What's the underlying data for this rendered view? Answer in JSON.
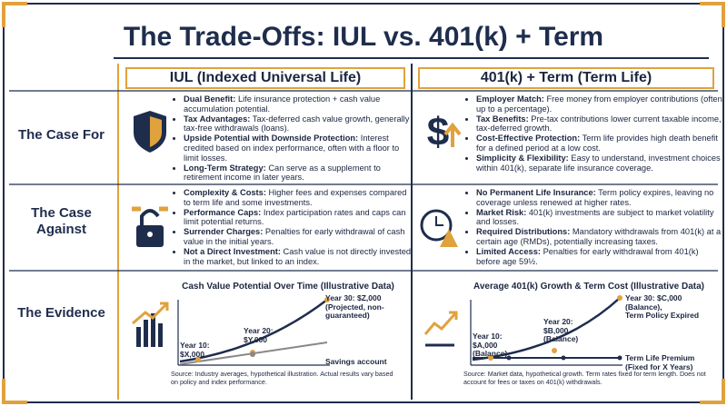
{
  "title": "The Trade-Offs: IUL vs. 401(k) + Term",
  "columns": [
    "IUL (Indexed Universal Life)",
    "401(k) + Term (Term Life)"
  ],
  "rows": [
    "The Case For",
    "The Case Against",
    "The Evidence"
  ],
  "case_for": [
    [
      {
        "bold": "Dual Benefit:",
        "text": "Life insurance protection + cash value accumulation potential."
      },
      {
        "bold": "Tax Advantages:",
        "text": "Tax-deferred cash value growth, generally tax-free withdrawals (loans)."
      },
      {
        "bold": "Upside Potential with Downside Protection:",
        "text": "Interest credited based on index performance, often with a floor to limit losses."
      },
      {
        "bold": "Long-Term Strategy:",
        "text": "Can serve as a supplement to retirement income in later years."
      }
    ],
    [
      {
        "bold": "Employer Match:",
        "text": "Free money from employer contributions (often up to a percentage)."
      },
      {
        "bold": "Tax Benefits:",
        "text": "Pre-tax contributions lower current taxable income, tax-deferred growth."
      },
      {
        "bold": "Cost-Effective Protection:",
        "text": "Term life provides high death benefit for a defined period at a low cost."
      },
      {
        "bold": "Simplicity & Flexibility:",
        "text": "Easy to understand, investment choices within 401(k), separate life insurance coverage."
      }
    ]
  ],
  "case_against": [
    [
      {
        "bold": "Complexity & Costs:",
        "text": "Higher fees and expenses compared to term life and some investments."
      },
      {
        "bold": "Performance Caps:",
        "text": "Index participation rates and caps can limit potential returns."
      },
      {
        "bold": "Surrender Charges:",
        "text": "Penalties for early withdrawal of cash value in the initial years."
      },
      {
        "bold": "Not a Direct Investment:",
        "text": "Cash value is not directly invested in the market, but linked to an index."
      }
    ],
    [
      {
        "bold": "No Permanent Life Insurance:",
        "text": "Term policy expires, leaving no coverage unless renewed at higher rates."
      },
      {
        "bold": "Market Risk:",
        "text": "401(k) investments are subject to market volatility and losses."
      },
      {
        "bold": "Required Distributions:",
        "text": "Mandatory withdrawals from 401(k) at a certain age (RMDs), potentially increasing taxes."
      },
      {
        "bold": "Limited Access:",
        "text": "Penalties for early withdrawal from 401(k) before age 59½."
      }
    ]
  ],
  "evidence": [
    {
      "title": "Cash Value Potential Over Time (Illustrative Data)",
      "labels": [
        [
          "Year 10:",
          "$X,000"
        ],
        [
          "Year 20:",
          "$Y,000"
        ],
        [
          "Year 30: $Z,000",
          "(Projected, non-",
          "guaranteed)"
        ],
        [
          "Savings account"
        ]
      ],
      "source": "Source: Industry averages, hypothetical illustration. Actual results vary based on policy and index performance."
    },
    {
      "title": "Average 401(k) Growth & Term Cost (Illustrative Data)",
      "labels": [
        [
          "Year 10:",
          "$A,000",
          "(Balance)"
        ],
        [
          "Year 20:",
          "$B,000",
          "(Balance)"
        ],
        [
          "Year 30: $C,000",
          "(Balance),",
          "Term Policy Expired"
        ],
        [
          "Term Life Premium",
          "(Fixed for X Years)"
        ]
      ],
      "source": "Source: Market data, hypothetical growth. Term rates fixed for term length. Does not account for fees or taxes on 401(k) withdrawals."
    }
  ]
}
